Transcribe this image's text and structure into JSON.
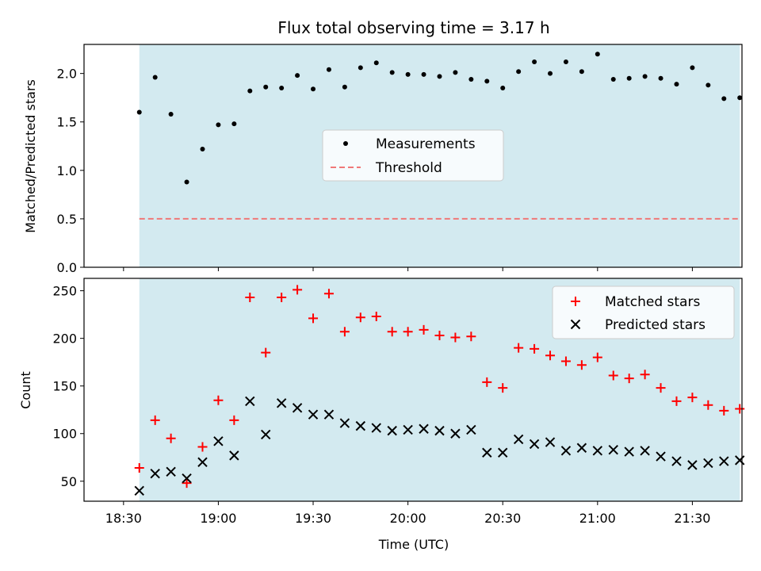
{
  "title": "Flux total observing time = 3.17 h",
  "x_tick_labels": [
    "18:30",
    "19:00",
    "19:30",
    "20:00",
    "20:30",
    "21:00",
    "21:30"
  ],
  "chart_data": [
    {
      "type": "scatter",
      "title": "Flux total observing time = 3.17 h",
      "ylabel": "Matched/Predicted stars",
      "xlabel": "",
      "ylim": [
        0,
        2.3
      ],
      "xlim_minutes_after_1830": [
        -12.5,
        195.7
      ],
      "observing_window": [
        "18:35",
        "21:45"
      ],
      "grid": false,
      "legend_position": "center",
      "yticks": [
        0.0,
        0.5,
        1.0,
        1.5,
        2.0
      ],
      "threshold": 0.5,
      "series": [
        {
          "name": "Measurements",
          "x": [
            "18:35",
            "18:40",
            "18:45",
            "18:50",
            "18:55",
            "19:00",
            "19:05",
            "19:10",
            "19:15",
            "19:20",
            "19:25",
            "19:30",
            "19:35",
            "19:40",
            "19:45",
            "19:50",
            "19:55",
            "20:00",
            "20:05",
            "20:10",
            "20:15",
            "20:20",
            "20:25",
            "20:30",
            "20:35",
            "20:40",
            "20:45",
            "20:50",
            "20:55",
            "21:00",
            "21:05",
            "21:10",
            "21:15",
            "21:20",
            "21:25",
            "21:30",
            "21:35",
            "21:40",
            "21:45"
          ],
          "y": [
            1.6,
            1.96,
            1.58,
            0.88,
            1.22,
            1.47,
            1.48,
            1.82,
            1.86,
            1.85,
            1.98,
            1.84,
            2.04,
            1.86,
            2.06,
            2.11,
            2.01,
            1.99,
            1.99,
            1.97,
            2.01,
            1.94,
            1.92,
            1.85,
            2.02,
            2.12,
            2.0,
            2.12,
            2.02,
            2.2,
            1.94,
            1.95,
            1.97,
            1.95,
            1.89,
            2.06,
            1.88,
            1.74,
            1.75
          ]
        },
        {
          "name": "Threshold",
          "x": [
            "18:35",
            "21:45"
          ],
          "y": [
            0.5,
            0.5
          ]
        }
      ]
    },
    {
      "type": "scatter",
      "title": "",
      "ylabel": "Count",
      "xlabel": "Time (UTC)",
      "ylim": [
        29,
        263
      ],
      "xlim_minutes_after_1830": [
        -12.5,
        195.7
      ],
      "observing_window": [
        "18:35",
        "21:45"
      ],
      "grid": false,
      "legend_position": "top-right",
      "yticks": [
        50,
        100,
        150,
        200,
        250
      ],
      "series": [
        {
          "name": "Matched stars",
          "x": [
            "18:35",
            "18:40",
            "18:45",
            "18:50",
            "18:55",
            "19:00",
            "19:05",
            "19:10",
            "19:15",
            "19:20",
            "19:25",
            "19:30",
            "19:35",
            "19:40",
            "19:45",
            "19:50",
            "19:55",
            "20:00",
            "20:05",
            "20:10",
            "20:15",
            "20:20",
            "20:25",
            "20:30",
            "20:35",
            "20:40",
            "20:45",
            "20:50",
            "20:55",
            "21:00",
            "21:05",
            "21:10",
            "21:15",
            "21:20",
            "21:25",
            "21:30",
            "21:35",
            "21:40",
            "21:45"
          ],
          "y": [
            64,
            114,
            95,
            48,
            86,
            135,
            114,
            243,
            185,
            243,
            251,
            221,
            247,
            207,
            222,
            223,
            207,
            207,
            209,
            203,
            201,
            202,
            154,
            148,
            190,
            189,
            182,
            176,
            172,
            180,
            161,
            158,
            162,
            148,
            134,
            138,
            130,
            124,
            126
          ]
        },
        {
          "name": "Predicted stars",
          "x": [
            "18:35",
            "18:40",
            "18:45",
            "18:50",
            "18:55",
            "19:00",
            "19:05",
            "19:10",
            "19:15",
            "19:20",
            "19:25",
            "19:30",
            "19:35",
            "19:40",
            "19:45",
            "19:50",
            "19:55",
            "20:00",
            "20:05",
            "20:10",
            "20:15",
            "20:20",
            "20:25",
            "20:30",
            "20:35",
            "20:40",
            "20:45",
            "20:50",
            "20:55",
            "21:00",
            "21:05",
            "21:10",
            "21:15",
            "21:20",
            "21:25",
            "21:30",
            "21:35",
            "21:40",
            "21:45"
          ],
          "y": [
            40,
            58,
            60,
            53,
            70,
            92,
            77,
            134,
            99,
            132,
            127,
            120,
            120,
            111,
            108,
            106,
            103,
            104,
            105,
            103,
            100,
            104,
            80,
            80,
            94,
            89,
            91,
            82,
            85,
            82,
            83,
            81,
            82,
            76,
            71,
            67,
            69,
            71,
            72
          ]
        }
      ]
    }
  ],
  "colors": {
    "shade": "#d3eaf0",
    "measurement": "#000000",
    "threshold": "#f07878",
    "matched": "#ff0000",
    "predicted": "#000000"
  }
}
